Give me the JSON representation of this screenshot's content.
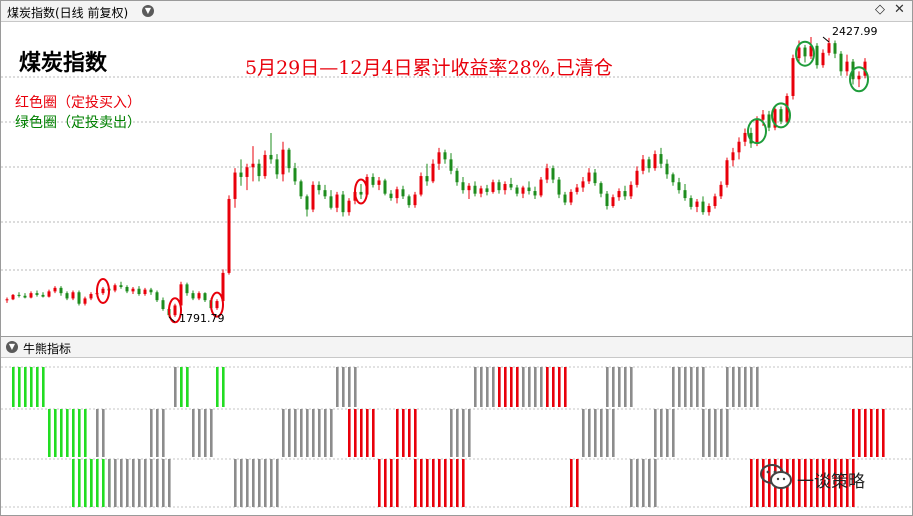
{
  "main_panel": {
    "title": "煤炭指数(日线 前复权)",
    "chart_title": "煤炭指数",
    "headline": "5月29日—12月4日累计收益率28%,已清仓",
    "legend_red": "红色圈（定投买入）",
    "legend_green": "绿色圈（定投卖出）",
    "low_label": "1791.79",
    "high_label": "2427.99"
  },
  "sub_panel": {
    "title": "牛熊指标"
  },
  "watermark": {
    "text": "一谈策略"
  },
  "icons": {
    "panel_collapse": "chevron-down-icon",
    "settings": "diamond-icon",
    "close": "close-icon",
    "watermark": "wechat-icon"
  },
  "colors": {
    "up": "#e8000b",
    "down": "#1e8c1e",
    "bull": "#e8000b",
    "bear_bright": "#22dd22",
    "neutral": "#8c8c8c"
  },
  "chart_data": {
    "type": "candlestick",
    "series_name": "煤炭指数",
    "ohlc": [
      [
        1830,
        1836,
        1824,
        1832
      ],
      [
        1832,
        1844,
        1830,
        1842
      ],
      [
        1842,
        1848,
        1836,
        1840
      ],
      [
        1840,
        1846,
        1834,
        1836
      ],
      [
        1836,
        1850,
        1834,
        1846
      ],
      [
        1846,
        1852,
        1838,
        1842
      ],
      [
        1842,
        1848,
        1836,
        1838
      ],
      [
        1838,
        1854,
        1836,
        1850
      ],
      [
        1850,
        1862,
        1846,
        1858
      ],
      [
        1858,
        1862,
        1840,
        1846
      ],
      [
        1846,
        1850,
        1830,
        1834
      ],
      [
        1834,
        1852,
        1830,
        1848
      ],
      [
        1848,
        1852,
        1818,
        1822
      ],
      [
        1822,
        1838,
        1818,
        1834
      ],
      [
        1834,
        1848,
        1830,
        1844
      ],
      [
        1844,
        1856,
        1838,
        1846
      ],
      [
        1846,
        1860,
        1842,
        1856
      ],
      [
        1856,
        1862,
        1848,
        1852
      ],
      [
        1852,
        1868,
        1848,
        1864
      ],
      [
        1864,
        1872,
        1856,
        1860
      ],
      [
        1860,
        1864,
        1846,
        1850
      ],
      [
        1850,
        1860,
        1844,
        1856
      ],
      [
        1856,
        1862,
        1840,
        1844
      ],
      [
        1844,
        1858,
        1840,
        1854
      ],
      [
        1854,
        1858,
        1842,
        1848
      ],
      [
        1848,
        1852,
        1826,
        1830
      ],
      [
        1830,
        1836,
        1806,
        1810
      ],
      [
        1810,
        1812,
        1792,
        1796
      ],
      [
        1796,
        1822,
        1792,
        1818
      ],
      [
        1818,
        1872,
        1814,
        1866
      ],
      [
        1866,
        1870,
        1840,
        1846
      ],
      [
        1846,
        1852,
        1830,
        1834
      ],
      [
        1834,
        1850,
        1830,
        1846
      ],
      [
        1846,
        1848,
        1826,
        1830
      ],
      [
        1830,
        1834,
        1808,
        1812
      ],
      [
        1812,
        1832,
        1808,
        1828
      ],
      [
        1828,
        1900,
        1824,
        1892
      ],
      [
        1892,
        2068,
        1888,
        2060
      ],
      [
        2060,
        2130,
        2040,
        2120
      ],
      [
        2120,
        2150,
        2090,
        2110
      ],
      [
        2110,
        2140,
        2080,
        2132
      ],
      [
        2132,
        2180,
        2100,
        2140
      ],
      [
        2140,
        2150,
        2100,
        2112
      ],
      [
        2112,
        2170,
        2106,
        2160
      ],
      [
        2160,
        2210,
        2140,
        2150
      ],
      [
        2150,
        2162,
        2106,
        2116
      ],
      [
        2116,
        2190,
        2100,
        2172
      ],
      [
        2172,
        2176,
        2120,
        2130
      ],
      [
        2130,
        2142,
        2092,
        2100
      ],
      [
        2100,
        2104,
        2060,
        2066
      ],
      [
        2066,
        2070,
        2020,
        2036
      ],
      [
        2036,
        2100,
        2030,
        2092
      ],
      [
        2092,
        2100,
        2070,
        2080
      ],
      [
        2080,
        2092,
        2060,
        2066
      ],
      [
        2066,
        2080,
        2036,
        2040
      ],
      [
        2040,
        2076,
        2030,
        2070
      ],
      [
        2070,
        2078,
        2020,
        2030
      ],
      [
        2030,
        2062,
        2022,
        2056
      ],
      [
        2056,
        2084,
        2048,
        2076
      ],
      [
        2076,
        2094,
        2060,
        2070
      ],
      [
        2070,
        2116,
        2066,
        2110
      ],
      [
        2110,
        2118,
        2086,
        2092
      ],
      [
        2092,
        2110,
        2080,
        2102
      ],
      [
        2102,
        2106,
        2068,
        2072
      ],
      [
        2072,
        2080,
        2056,
        2062
      ],
      [
        2062,
        2088,
        2050,
        2082
      ],
      [
        2082,
        2090,
        2060,
        2066
      ],
      [
        2066,
        2070,
        2040,
        2046
      ],
      [
        2046,
        2076,
        2040,
        2070
      ],
      [
        2070,
        2120,
        2066,
        2112
      ],
      [
        2112,
        2140,
        2090,
        2100
      ],
      [
        2100,
        2150,
        2096,
        2140
      ],
      [
        2140,
        2176,
        2126,
        2166
      ],
      [
        2166,
        2172,
        2140,
        2150
      ],
      [
        2150,
        2164,
        2116,
        2124
      ],
      [
        2124,
        2130,
        2090,
        2098
      ],
      [
        2098,
        2110,
        2072,
        2080
      ],
      [
        2080,
        2096,
        2060,
        2090
      ],
      [
        2090,
        2100,
        2066,
        2072
      ],
      [
        2072,
        2090,
        2064,
        2084
      ],
      [
        2084,
        2092,
        2068,
        2076
      ],
      [
        2076,
        2104,
        2072,
        2098
      ],
      [
        2098,
        2104,
        2072,
        2080
      ],
      [
        2080,
        2100,
        2070,
        2094
      ],
      [
        2094,
        2108,
        2080,
        2086
      ],
      [
        2086,
        2092,
        2066,
        2072
      ],
      [
        2072,
        2090,
        2062,
        2086
      ],
      [
        2086,
        2100,
        2070,
        2078
      ],
      [
        2078,
        2088,
        2060,
        2068
      ],
      [
        2068,
        2110,
        2064,
        2104
      ],
      [
        2104,
        2140,
        2096,
        2130
      ],
      [
        2130,
        2136,
        2096,
        2104
      ],
      [
        2104,
        2110,
        2062,
        2070
      ],
      [
        2070,
        2076,
        2046,
        2052
      ],
      [
        2052,
        2082,
        2046,
        2076
      ],
      [
        2076,
        2094,
        2070,
        2086
      ],
      [
        2086,
        2110,
        2076,
        2100
      ],
      [
        2100,
        2130,
        2094,
        2120
      ],
      [
        2120,
        2128,
        2090,
        2096
      ],
      [
        2096,
        2100,
        2064,
        2072
      ],
      [
        2072,
        2078,
        2036,
        2044
      ],
      [
        2044,
        2070,
        2040,
        2064
      ],
      [
        2064,
        2084,
        2056,
        2078
      ],
      [
        2078,
        2090,
        2058,
        2066
      ],
      [
        2066,
        2100,
        2060,
        2092
      ],
      [
        2092,
        2134,
        2086,
        2124
      ],
      [
        2124,
        2160,
        2116,
        2150
      ],
      [
        2150,
        2156,
        2120,
        2130
      ],
      [
        2130,
        2170,
        2124,
        2162
      ],
      [
        2162,
        2176,
        2130,
        2140
      ],
      [
        2140,
        2150,
        2106,
        2116
      ],
      [
        2116,
        2120,
        2090,
        2098
      ],
      [
        2098,
        2108,
        2072,
        2080
      ],
      [
        2080,
        2094,
        2056,
        2062
      ],
      [
        2062,
        2068,
        2036,
        2042
      ],
      [
        2042,
        2060,
        2030,
        2054
      ],
      [
        2054,
        2066,
        2024,
        2030
      ],
      [
        2030,
        2050,
        2022,
        2044
      ],
      [
        2044,
        2072,
        2038,
        2066
      ],
      [
        2066,
        2100,
        2060,
        2092
      ],
      [
        2092,
        2154,
        2086,
        2148
      ],
      [
        2148,
        2176,
        2134,
        2166
      ],
      [
        2166,
        2200,
        2150,
        2190
      ],
      [
        2190,
        2220,
        2180,
        2210
      ],
      [
        2210,
        2222,
        2176,
        2186
      ],
      [
        2186,
        2248,
        2180,
        2240
      ],
      [
        2240,
        2262,
        2226,
        2252
      ],
      [
        2252,
        2260,
        2214,
        2222
      ],
      [
        2222,
        2272,
        2216,
        2264
      ],
      [
        2264,
        2270,
        2230,
        2236
      ],
      [
        2236,
        2300,
        2230,
        2294
      ],
      [
        2294,
        2388,
        2286,
        2380
      ],
      [
        2380,
        2420,
        2370,
        2404
      ],
      [
        2404,
        2410,
        2370,
        2384
      ],
      [
        2384,
        2428,
        2378,
        2408
      ],
      [
        2408,
        2414,
        2356,
        2364
      ],
      [
        2364,
        2400,
        2358,
        2392
      ],
      [
        2392,
        2426,
        2386,
        2414
      ],
      [
        2414,
        2420,
        2380,
        2390
      ],
      [
        2390,
        2396,
        2340,
        2350
      ],
      [
        2350,
        2388,
        2340,
        2372
      ],
      [
        2372,
        2378,
        2320,
        2332
      ],
      [
        2332,
        2350,
        2314,
        2340
      ],
      [
        2340,
        2380,
        2334,
        2372
      ]
    ],
    "low": 1791.79,
    "high": 2427.99,
    "indicator": {
      "name": "牛熊指标",
      "levels": 3,
      "segments": [
        {
          "start": 0.5,
          "end": 6,
          "level": 2,
          "color": "bear_bright"
        },
        {
          "start": 7,
          "end": 13,
          "level": 1,
          "color": "bear_bright"
        },
        {
          "start": 11,
          "end": 14,
          "level": 0,
          "color": "bear_bright"
        },
        {
          "start": 14,
          "end": 15,
          "level": 0,
          "color": "bear_bright"
        },
        {
          "start": 15,
          "end": 16,
          "level": 1,
          "color": "neutral"
        },
        {
          "start": 16,
          "end": 17,
          "level": 0,
          "color": "bear_bright"
        },
        {
          "start": 17,
          "end": 27,
          "level": 0,
          "color": "neutral"
        },
        {
          "start": 24,
          "end": 26,
          "level": 1,
          "color": "neutral"
        },
        {
          "start": 28,
          "end": 30,
          "level": 2,
          "color": "neutral"
        },
        {
          "start": 29,
          "end": 30,
          "level": 2,
          "color": "bear_bright"
        },
        {
          "start": 31,
          "end": 34,
          "level": 1,
          "color": "neutral"
        },
        {
          "start": 35,
          "end": 36,
          "level": 2,
          "color": "bear_bright"
        },
        {
          "start": 38,
          "end": 45,
          "level": 0,
          "color": "neutral"
        },
        {
          "start": 46,
          "end": 54,
          "level": 1,
          "color": "neutral"
        },
        {
          "start": 55,
          "end": 58,
          "level": 2,
          "color": "neutral"
        },
        {
          "start": 57,
          "end": 61,
          "level": 1,
          "color": "bull"
        },
        {
          "start": 62,
          "end": 65,
          "level": 0,
          "color": "bull"
        },
        {
          "start": 65,
          "end": 68,
          "level": 1,
          "color": "bull"
        },
        {
          "start": 68,
          "end": 76,
          "level": 0,
          "color": "bull"
        },
        {
          "start": 74,
          "end": 77,
          "level": 1,
          "color": "neutral"
        },
        {
          "start": 78,
          "end": 82,
          "level": 2,
          "color": "neutral"
        },
        {
          "start": 82,
          "end": 85,
          "level": 2,
          "color": "bull"
        },
        {
          "start": 86,
          "end": 90,
          "level": 2,
          "color": "neutral"
        },
        {
          "start": 90,
          "end": 93,
          "level": 2,
          "color": "bull"
        },
        {
          "start": 94,
          "end": 95,
          "level": 0,
          "color": "bull"
        },
        {
          "start": 96,
          "end": 101,
          "level": 1,
          "color": "neutral"
        },
        {
          "start": 100,
          "end": 104,
          "level": 2,
          "color": "neutral"
        },
        {
          "start": 104,
          "end": 108,
          "level": 0,
          "color": "neutral"
        },
        {
          "start": 108,
          "end": 111,
          "level": 1,
          "color": "neutral"
        },
        {
          "start": 111,
          "end": 116,
          "level": 2,
          "color": "neutral"
        },
        {
          "start": 116,
          "end": 120,
          "level": 1,
          "color": "neutral"
        },
        {
          "start": 120,
          "end": 125,
          "level": 2,
          "color": "neutral"
        },
        {
          "start": 124,
          "end": 131,
          "level": 0,
          "color": "bull"
        },
        {
          "start": 130,
          "end": 141,
          "level": 0,
          "color": "bull"
        },
        {
          "start": 141,
          "end": 146,
          "level": 1,
          "color": "bull"
        }
      ]
    }
  }
}
